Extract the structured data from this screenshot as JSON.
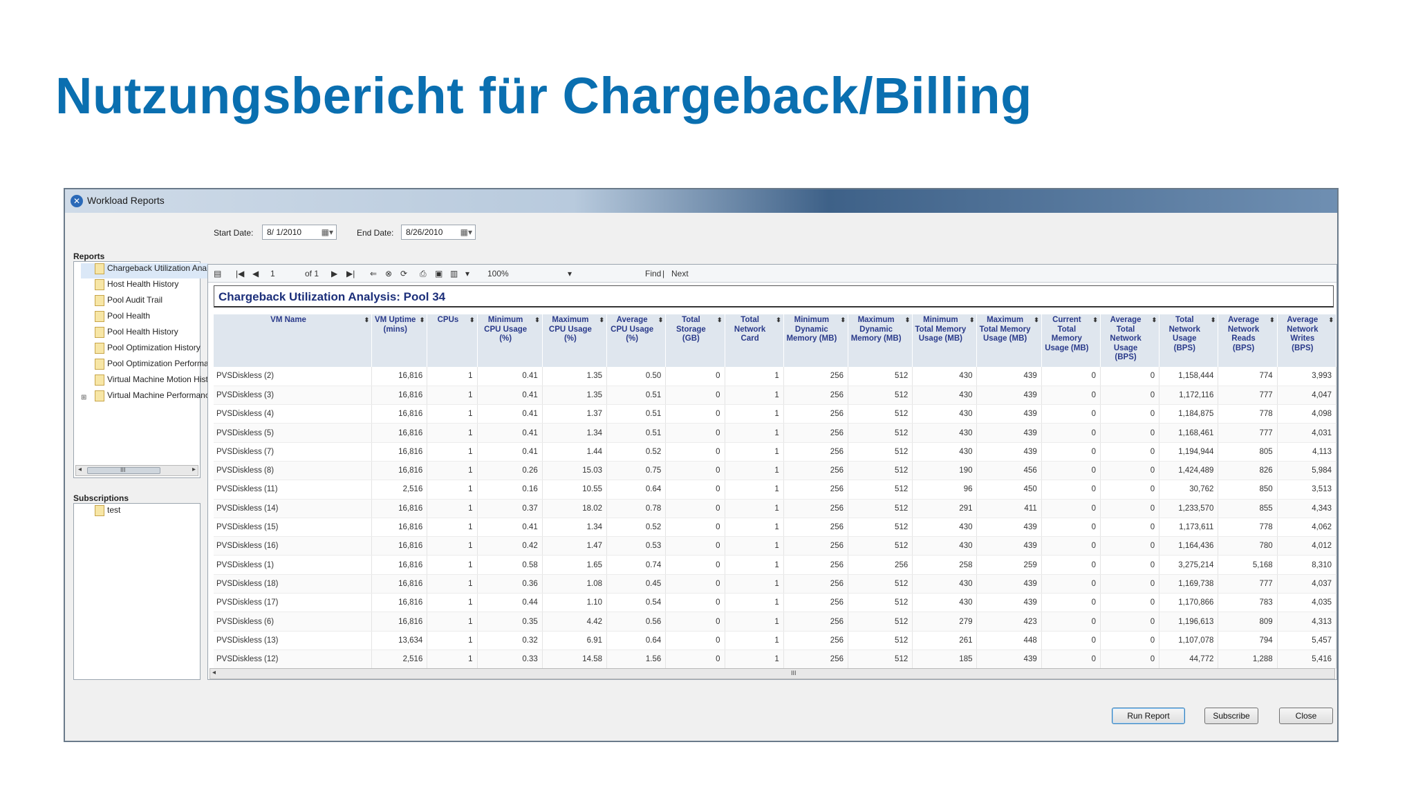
{
  "slide": {
    "title": "Nutzungsbericht für Chargeback/Billing"
  },
  "window": {
    "title": "Workload Reports"
  },
  "filters": {
    "start_label": "Start Date:",
    "start_value": "8/ 1/2010",
    "end_label": "End Date:",
    "end_value": "8/26/2010"
  },
  "reports_panel": {
    "heading": "Reports",
    "items": [
      "Chargeback Utilization Analysis",
      "Host Health History",
      "Pool Audit Trail",
      "Pool Health",
      "Pool Health History",
      "Pool Optimization History",
      "Pool Optimization Performance",
      "Virtual Machine Motion History",
      "Virtual Machine Performance"
    ],
    "scroll_label": "III"
  },
  "subscriptions_panel": {
    "heading": "Subscriptions",
    "items": [
      "test"
    ]
  },
  "toolbar": {
    "page": "1",
    "of_label": "of 1",
    "zoom": "100%",
    "find": "Find",
    "separator": "|",
    "next": "Next"
  },
  "report": {
    "title": "Chargeback Utilization Analysis: Pool 34",
    "columns": [
      "VM Name",
      "VM Uptime (mins)",
      "CPUs",
      "Minimum CPU Usage (%)",
      "Maximum CPU Usage (%)",
      "Average CPU Usage (%)",
      "Total Storage (GB)",
      "Total Network Card",
      "Minimum Dynamic Memory (MB)",
      "Maximum Dynamic Memory (MB)",
      "Minimum Total Memory Usage (MB)",
      "Maximum Total Memory Usage (MB)",
      "Current Total Memory Usage (MB)",
      "Average Total Network Usage (BPS)",
      "Total Network Usage (BPS)",
      "Average Network Reads (BPS)",
      "Average Network Writes (BPS)"
    ],
    "rows": [
      [
        "PVSDiskless (2)",
        "16,816",
        "1",
        "0.41",
        "1.35",
        "0.50",
        "0",
        "1",
        "256",
        "512",
        "430",
        "439",
        "0",
        "0",
        "1,158,444",
        "774",
        "3,993"
      ],
      [
        "PVSDiskless (3)",
        "16,816",
        "1",
        "0.41",
        "1.35",
        "0.51",
        "0",
        "1",
        "256",
        "512",
        "430",
        "439",
        "0",
        "0",
        "1,172,116",
        "777",
        "4,047"
      ],
      [
        "PVSDiskless (4)",
        "16,816",
        "1",
        "0.41",
        "1.37",
        "0.51",
        "0",
        "1",
        "256",
        "512",
        "430",
        "439",
        "0",
        "0",
        "1,184,875",
        "778",
        "4,098"
      ],
      [
        "PVSDiskless (5)",
        "16,816",
        "1",
        "0.41",
        "1.34",
        "0.51",
        "0",
        "1",
        "256",
        "512",
        "430",
        "439",
        "0",
        "0",
        "1,168,461",
        "777",
        "4,031"
      ],
      [
        "PVSDiskless (7)",
        "16,816",
        "1",
        "0.41",
        "1.44",
        "0.52",
        "0",
        "1",
        "256",
        "512",
        "430",
        "439",
        "0",
        "0",
        "1,194,944",
        "805",
        "4,113"
      ],
      [
        "PVSDiskless (8)",
        "16,816",
        "1",
        "0.26",
        "15.03",
        "0.75",
        "0",
        "1",
        "256",
        "512",
        "190",
        "456",
        "0",
        "0",
        "1,424,489",
        "826",
        "5,984"
      ],
      [
        "PVSDiskless (11)",
        "2,516",
        "1",
        "0.16",
        "10.55",
        "0.64",
        "0",
        "1",
        "256",
        "512",
        "96",
        "450",
        "0",
        "0",
        "30,762",
        "850",
        "3,513"
      ],
      [
        "PVSDiskless (14)",
        "16,816",
        "1",
        "0.37",
        "18.02",
        "0.78",
        "0",
        "1",
        "256",
        "512",
        "291",
        "411",
        "0",
        "0",
        "1,233,570",
        "855",
        "4,343"
      ],
      [
        "PVSDiskless (15)",
        "16,816",
        "1",
        "0.41",
        "1.34",
        "0.52",
        "0",
        "1",
        "256",
        "512",
        "430",
        "439",
        "0",
        "0",
        "1,173,611",
        "778",
        "4,062"
      ],
      [
        "PVSDiskless (16)",
        "16,816",
        "1",
        "0.42",
        "1.47",
        "0.53",
        "0",
        "1",
        "256",
        "512",
        "430",
        "439",
        "0",
        "0",
        "1,164,436",
        "780",
        "4,012"
      ],
      [
        "PVSDiskless (1)",
        "16,816",
        "1",
        "0.58",
        "1.65",
        "0.74",
        "0",
        "1",
        "256",
        "256",
        "258",
        "259",
        "0",
        "0",
        "3,275,214",
        "5,168",
        "8,310"
      ],
      [
        "PVSDiskless (18)",
        "16,816",
        "1",
        "0.36",
        "1.08",
        "0.45",
        "0",
        "1",
        "256",
        "512",
        "430",
        "439",
        "0",
        "0",
        "1,169,738",
        "777",
        "4,037"
      ],
      [
        "PVSDiskless (17)",
        "16,816",
        "1",
        "0.44",
        "1.10",
        "0.54",
        "0",
        "1",
        "256",
        "512",
        "430",
        "439",
        "0",
        "0",
        "1,170,866",
        "783",
        "4,035"
      ],
      [
        "PVSDiskless (6)",
        "16,816",
        "1",
        "0.35",
        "4.42",
        "0.56",
        "0",
        "1",
        "256",
        "512",
        "279",
        "423",
        "0",
        "0",
        "1,196,613",
        "809",
        "4,313"
      ],
      [
        "PVSDiskless (13)",
        "13,634",
        "1",
        "0.32",
        "6.91",
        "0.64",
        "0",
        "1",
        "256",
        "512",
        "261",
        "448",
        "0",
        "0",
        "1,107,078",
        "794",
        "5,457"
      ],
      [
        "PVSDiskless (12)",
        "2,516",
        "1",
        "0.33",
        "14.58",
        "1.56",
        "0",
        "1",
        "256",
        "512",
        "185",
        "439",
        "0",
        "0",
        "44,772",
        "1,288",
        "5,416"
      ]
    ],
    "h_scroll_label": "III"
  },
  "buttons": {
    "run": "Run Report",
    "subscribe": "Subscribe",
    "close": "Close"
  }
}
